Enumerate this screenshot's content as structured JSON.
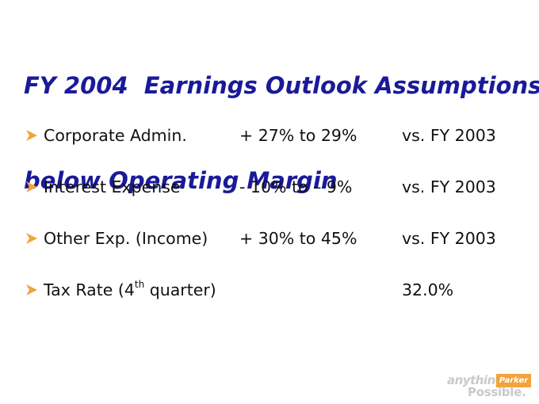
{
  "slide": {
    "title_line1": "FY 2004  Earnings Outlook Assumptions",
    "title_line2": "below Operating Margin"
  },
  "rows": [
    {
      "label": "Corporate Admin.",
      "range": "+ 27% to 29%",
      "comparison": "vs. FY 2003"
    },
    {
      "label": "Interest Expense",
      "range": "- 10% to – 9%",
      "comparison": "vs. FY 2003"
    },
    {
      "label": "Other Exp. (Income)",
      "range": "+ 30% to 45%",
      "comparison": "vs. FY 2003"
    },
    {
      "label_prefix": "Tax Rate (4",
      "label_sup": "th",
      "label_suffix": " quarter)",
      "range": "",
      "comparison": "32.0%"
    }
  ],
  "logo": {
    "tagline_top": "anything",
    "brand": "Parker",
    "tagline_bottom": "Possible."
  },
  "colors": {
    "title": "#1a1a99",
    "bullet": "#f2a33a",
    "logo_accent": "#f2a33a",
    "logo_text": "#c9c9c9"
  },
  "icons": {
    "bullet": "arrowhead-bullet-icon"
  }
}
